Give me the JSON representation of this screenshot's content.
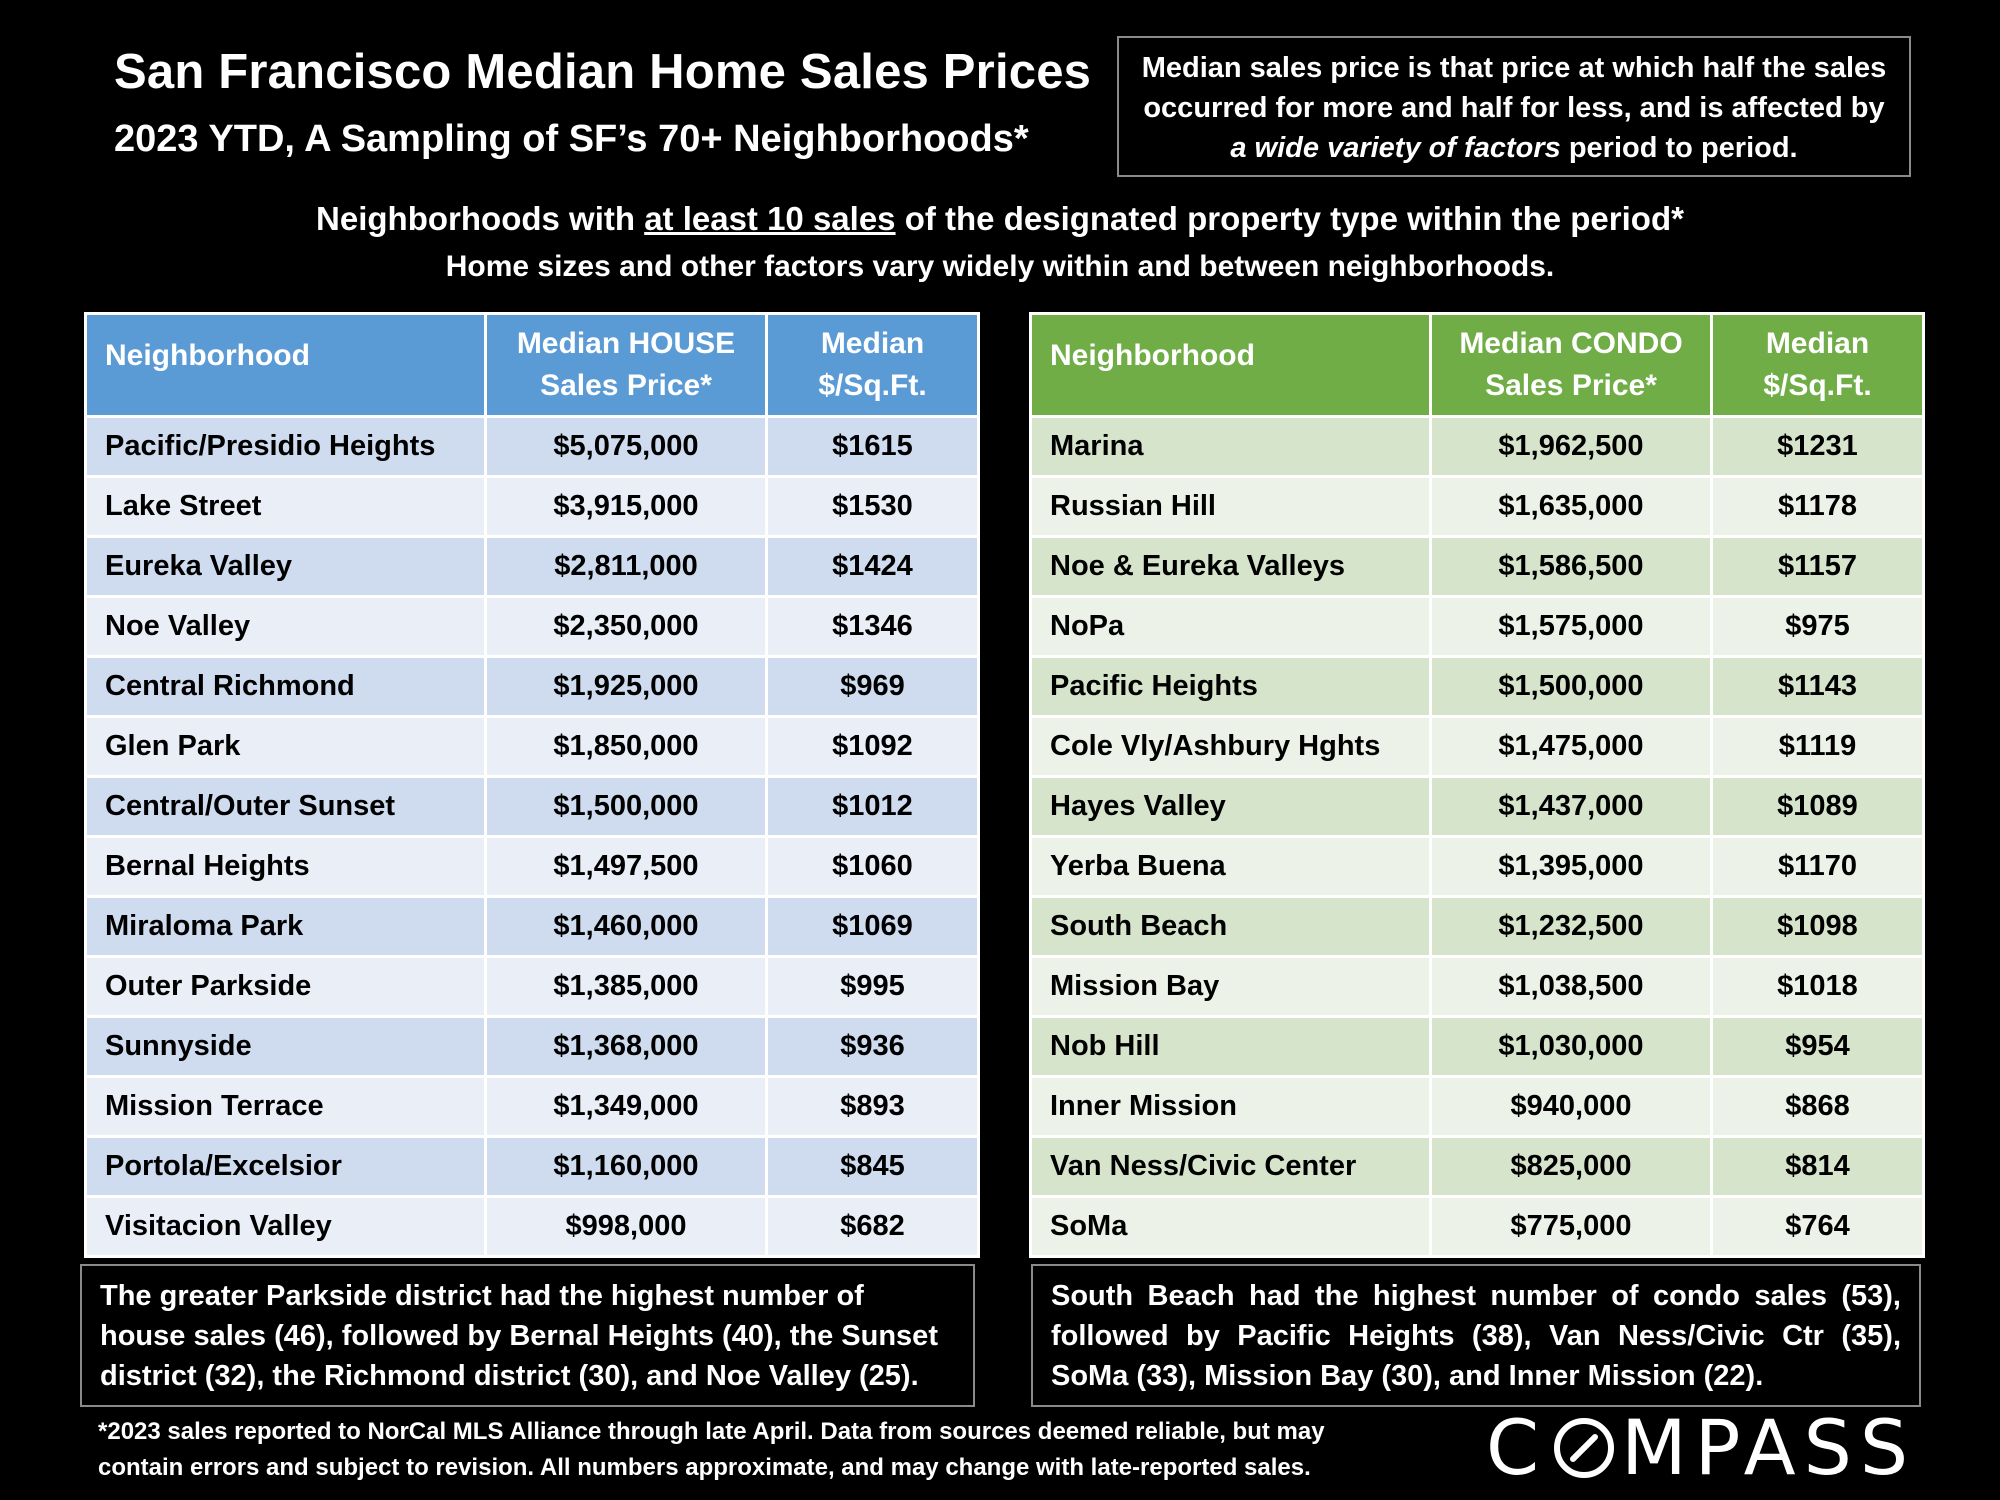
{
  "header": {
    "title": "San Francisco Median Home Sales Prices",
    "subtitle": "2023 YTD, A Sampling of SF’s 70+ Neighborhoods*"
  },
  "definition": {
    "line1": "Median sales price is that price at which half the sales",
    "line2": "occurred for more and half for less, and is affected by",
    "line3_italic": "a wide variety of factors",
    "line3_rest": " period to period."
  },
  "headings": {
    "line1_before": "Neighborhoods with ",
    "line1_underlined": "at least 10 sales",
    "line1_after": " of the designated property type within the period*",
    "line2": "Home sizes and other factors vary widely within and between neighborhoods."
  },
  "house_table": {
    "col1": "Neighborhood",
    "col2_line1": "Median HOUSE",
    "col2_line2": "Sales Price*",
    "col3_line1": "Median",
    "col3_line2": "$/Sq.Ft.",
    "rows": [
      {
        "name": "Pacific/Presidio Heights",
        "price": "$5,075,000",
        "psf": "$1615"
      },
      {
        "name": "Lake Street",
        "price": "$3,915,000",
        "psf": "$1530"
      },
      {
        "name": "Eureka Valley",
        "price": "$2,811,000",
        "psf": "$1424"
      },
      {
        "name": "Noe Valley",
        "price": "$2,350,000",
        "psf": "$1346"
      },
      {
        "name": "Central Richmond",
        "price": "$1,925,000",
        "psf": "$969"
      },
      {
        "name": "Glen Park",
        "price": "$1,850,000",
        "psf": "$1092"
      },
      {
        "name": "Central/Outer Sunset",
        "price": "$1,500,000",
        "psf": "$1012"
      },
      {
        "name": "Bernal Heights",
        "price": "$1,497,500",
        "psf": "$1060"
      },
      {
        "name": "Miraloma Park",
        "price": "$1,460,000",
        "psf": "$1069"
      },
      {
        "name": "Outer Parkside",
        "price": "$1,385,000",
        "psf": "$995"
      },
      {
        "name": "Sunnyside",
        "price": "$1,368,000",
        "psf": "$936"
      },
      {
        "name": "Mission Terrace",
        "price": "$1,349,000",
        "psf": "$893"
      },
      {
        "name": "Portola/Excelsior",
        "price": "$1,160,000",
        "psf": "$845"
      },
      {
        "name": "Visitacion Valley",
        "price": "$998,000",
        "psf": "$682"
      }
    ]
  },
  "condo_table": {
    "col1": "Neighborhood",
    "col2_line1": "Median CONDO",
    "col2_line2": "Sales Price*",
    "col3_line1": "Median",
    "col3_line2": "$/Sq.Ft.",
    "rows": [
      {
        "name": "Marina",
        "price": "$1,962,500",
        "psf": "$1231"
      },
      {
        "name": "Russian Hill",
        "price": "$1,635,000",
        "psf": "$1178"
      },
      {
        "name": "Noe & Eureka Valleys",
        "price": "$1,586,500",
        "psf": "$1157"
      },
      {
        "name": "NoPa",
        "price": "$1,575,000",
        "psf": "$975"
      },
      {
        "name": "Pacific Heights",
        "price": "$1,500,000",
        "psf": "$1143"
      },
      {
        "name": "Cole Vly/Ashbury Hghts",
        "price": "$1,475,000",
        "psf": "$1119"
      },
      {
        "name": "Hayes Valley",
        "price": "$1,437,000",
        "psf": "$1089"
      },
      {
        "name": "Yerba Buena",
        "price": "$1,395,000",
        "psf": "$1170"
      },
      {
        "name": "South Beach",
        "price": "$1,232,500",
        "psf": "$1098"
      },
      {
        "name": "Mission Bay",
        "price": "$1,038,500",
        "psf": "$1018"
      },
      {
        "name": "Nob Hill",
        "price": "$1,030,000",
        "psf": "$954"
      },
      {
        "name": "Inner Mission",
        "price": "$940,000",
        "psf": "$868"
      },
      {
        "name": "Van Ness/Civic Center",
        "price": "$825,000",
        "psf": "$814"
      },
      {
        "name": "SoMa",
        "price": "$775,000",
        "psf": "$764"
      }
    ]
  },
  "notes": {
    "house": "The greater Parkside district had the highest number of house sales (46), followed by Bernal Heights (40), the Sunset district (32), the Richmond district (30), and Noe Valley (25).",
    "condo": "South Beach had the highest number of condo sales (53), followed by Pacific Heights (38), Van Ness/Civic Ctr (35), SoMa (33), Mission Bay (30), and Inner Mission (22)."
  },
  "footnote": {
    "line1": "*2023 sales reported to NorCal MLS Alliance through late April. Data from sources deemed reliable, but may",
    "line2": "contain errors and subject to revision. All numbers approximate, and may change with late-reported sales."
  },
  "logo": {
    "text_before": "C",
    "text_after": "MPASS"
  },
  "colors": {
    "background": "#000000",
    "house_header": "#5b9bd5",
    "house_row_dark": "#cfdbee",
    "house_row_light": "#e9eef7",
    "condo_header": "#70ad47",
    "condo_row_dark": "#d6e4cc",
    "condo_row_light": "#ecf2e8"
  }
}
